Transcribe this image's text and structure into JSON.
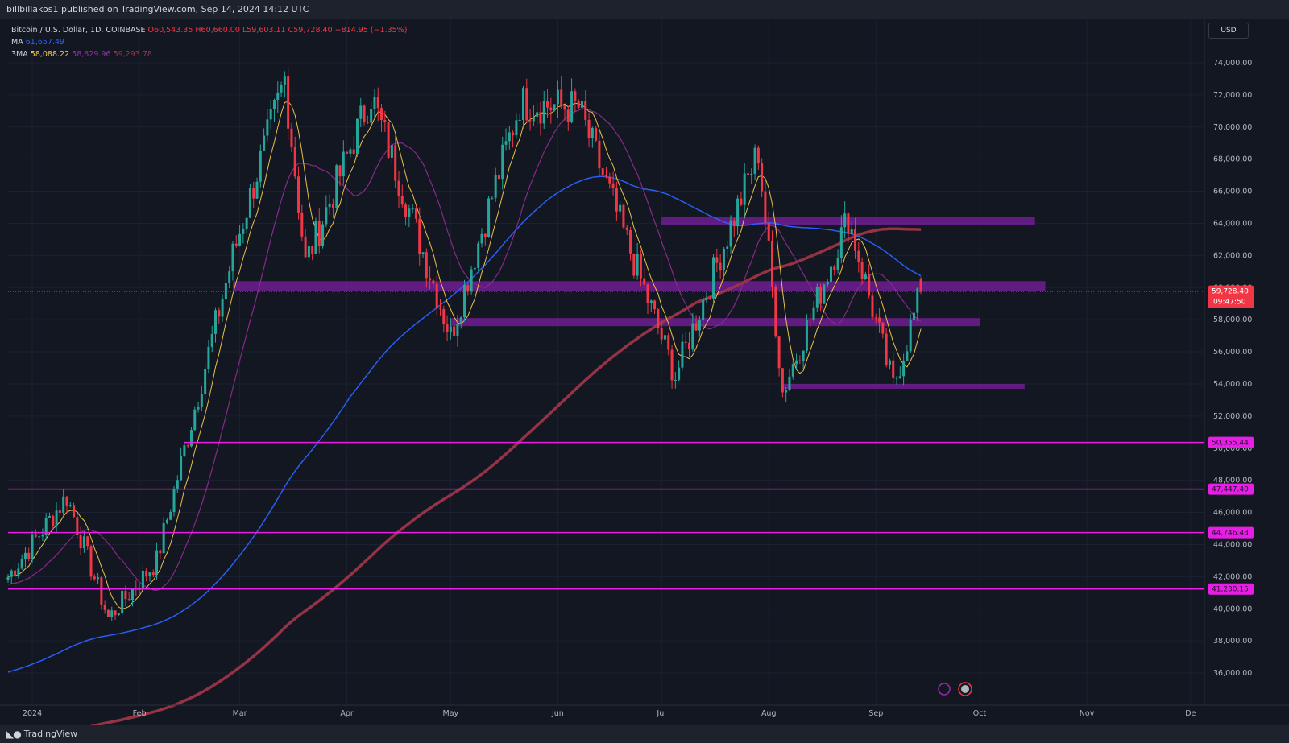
{
  "header": {
    "publisher_text": "billbillakos1 published on TradingView.com, Sep 14, 2024 14:12 UTC"
  },
  "legend": {
    "symbol": "Bitcoin / U.S. Dollar, 1D, COINBASE",
    "open": "O60,543.35",
    "high": "H60,660.00",
    "low": "L59,603.11",
    "close": "C59,728.40",
    "change": "−814.95 (−1.35%)",
    "ma_label": "MA",
    "ma_value": "61,657.49",
    "ma3_label": "3MA",
    "ma3_v1": "58,088.22",
    "ma3_v2": "58,829.96",
    "ma3_v3": "59,293.78"
  },
  "currency_button": "USD",
  "footer": {
    "brand": "TradingView"
  },
  "colors": {
    "background": "#131722",
    "up_candle": "#26a69a",
    "down_candle": "#f23645",
    "ma_fast": "#f7c948",
    "ma_mid": "#8e2a8e",
    "ma_blue": "#2962ff",
    "ma_slow": "#9c3548",
    "zone": "#7b1fa2",
    "level_line": "#e91ee6"
  },
  "price_tag": {
    "price": "59,728.40",
    "countdown": "09:47:50"
  },
  "chart_data": {
    "type": "candlestick",
    "title": "Bitcoin / U.S. Dollar, 1D, COINBASE",
    "x_labels": [
      "2024",
      "Feb",
      "Mar",
      "Apr",
      "May",
      "Jun",
      "Jul",
      "Aug",
      "Sep",
      "Oct",
      "Nov",
      "De"
    ],
    "y_ticks": [
      "36,000.00",
      "38,000.00",
      "40,000.00",
      "42,000.00",
      "44,000.00",
      "46,000.00",
      "48,000.00",
      "50,000.00",
      "52,000.00",
      "54,000.00",
      "56,000.00",
      "58,000.00",
      "60,000.00",
      "62,000.00",
      "64,000.00",
      "66,000.00",
      "68,000.00",
      "70,000.00",
      "72,000.00",
      "74,000.00"
    ],
    "ylim": [
      34800,
      74800
    ],
    "key_points": [
      {
        "date": "2023-12-25",
        "price": 42000
      },
      {
        "date": "2024-01-11",
        "price": 47000
      },
      {
        "date": "2024-01-23",
        "price": 39400
      },
      {
        "date": "2024-02-06",
        "price": 43000
      },
      {
        "date": "2024-02-28",
        "price": 62000
      },
      {
        "date": "2024-03-14",
        "price": 73000
      },
      {
        "date": "2024-03-20",
        "price": 61500
      },
      {
        "date": "2024-04-08",
        "price": 72000
      },
      {
        "date": "2024-05-01",
        "price": 57000
      },
      {
        "date": "2024-05-21",
        "price": 71500
      },
      {
        "date": "2024-06-07",
        "price": 71200
      },
      {
        "date": "2024-07-05",
        "price": 54500
      },
      {
        "date": "2024-07-29",
        "price": 68500
      },
      {
        "date": "2024-08-05",
        "price": 53500
      },
      {
        "date": "2024-08-24",
        "price": 64400
      },
      {
        "date": "2024-09-06",
        "price": 53800
      },
      {
        "date": "2024-09-14",
        "price": 59728.4
      }
    ],
    "zones": [
      {
        "from_date": "2024-07-01",
        "to_date": "2024-10-17",
        "low": 64100,
        "high": 64400
      },
      {
        "from_date": "2024-02-28",
        "to_date": "2024-10-20",
        "low": 60000,
        "high": 60400
      },
      {
        "from_date": "2024-05-01",
        "to_date": "2024-10-01",
        "low": 57800,
        "high": 58100
      },
      {
        "from_date": "2024-08-05",
        "to_date": "2024-10-14",
        "low": 53900,
        "high": 54000
      }
    ],
    "horizontal_levels": [
      {
        "price": 50355.44,
        "label": "50,355.44",
        "from_date": "2024-02-14"
      },
      {
        "price": 47447.49,
        "label": "47,447.49",
        "from_date": "2023-12-25"
      },
      {
        "price": 44746.43,
        "label": "44,746.43",
        "from_date": "2023-12-25"
      },
      {
        "price": 41230.15,
        "label": "41,230.15",
        "from_date": "2023-12-25"
      }
    ],
    "moving_averages": [
      {
        "name": "MA",
        "color": "#2962ff",
        "value": 61657.49
      },
      {
        "name": "3MA fast",
        "color": "#f7c948",
        "value": 58088.22
      },
      {
        "name": "3MA mid",
        "color": "#8e2a8e",
        "value": 58829.96
      },
      {
        "name": "3MA slow",
        "color": "#9c3548",
        "value": 59293.78
      }
    ],
    "last_price": 59728.4
  }
}
